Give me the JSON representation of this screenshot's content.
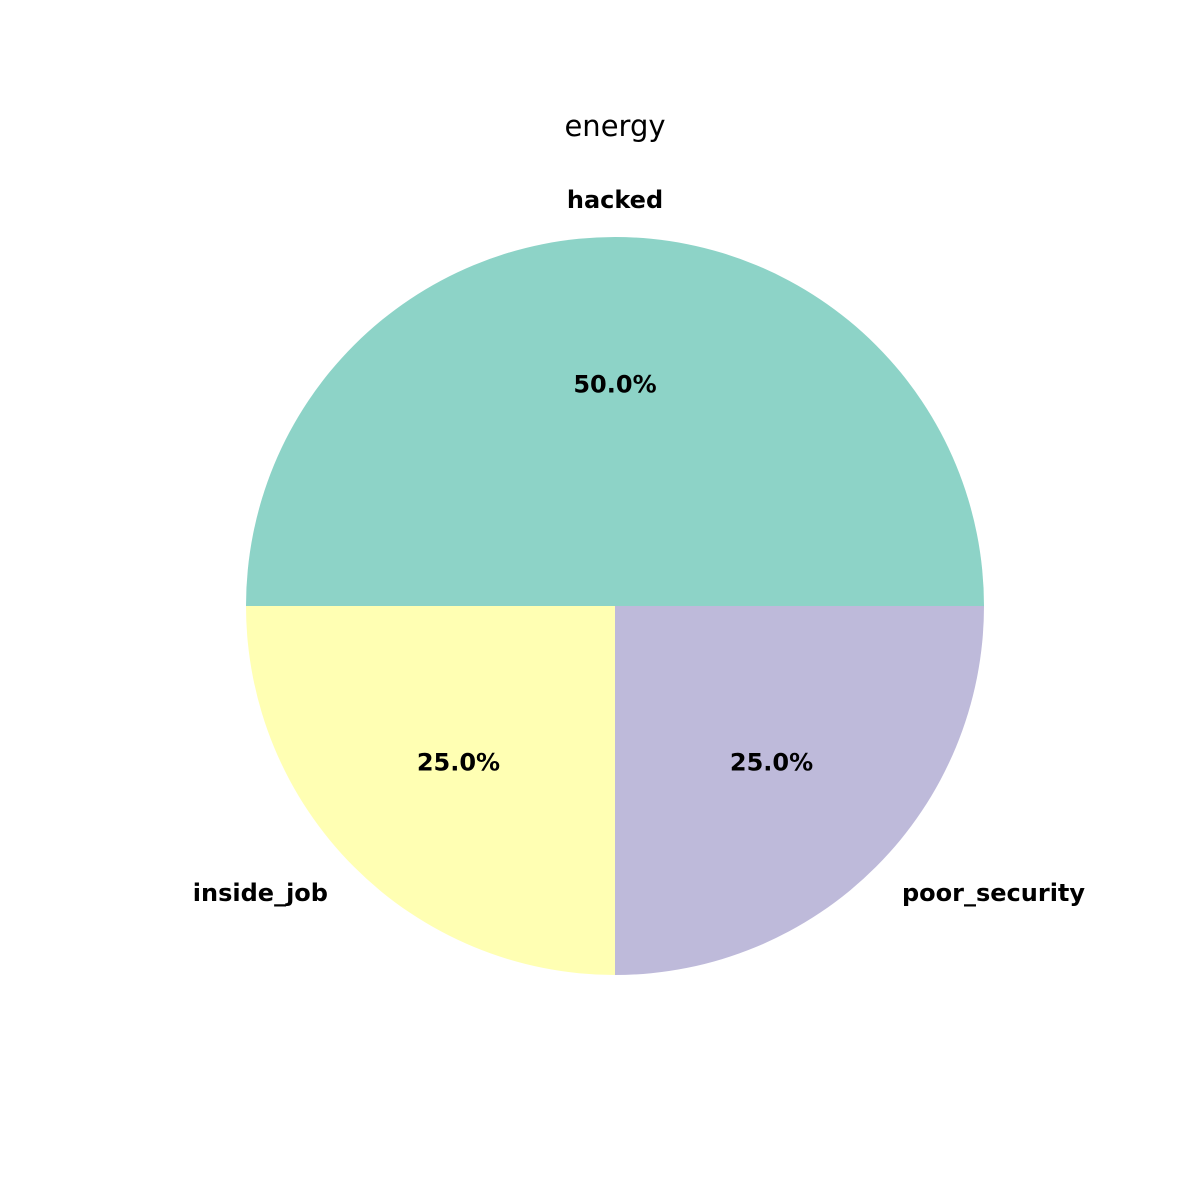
{
  "chart_data": {
    "type": "pie",
    "title": "energy",
    "start_angle_deg": 0,
    "direction": "counterclockwise",
    "slices": [
      {
        "label": "hacked",
        "value": 50.0,
        "pct_label": "50.0%",
        "color": "#8dd3c7"
      },
      {
        "label": "inside_job",
        "value": 25.0,
        "pct_label": "25.0%",
        "color": "#ffffb3"
      },
      {
        "label": "poor_security",
        "value": 25.0,
        "pct_label": "25.0%",
        "color": "#bebada"
      }
    ]
  }
}
